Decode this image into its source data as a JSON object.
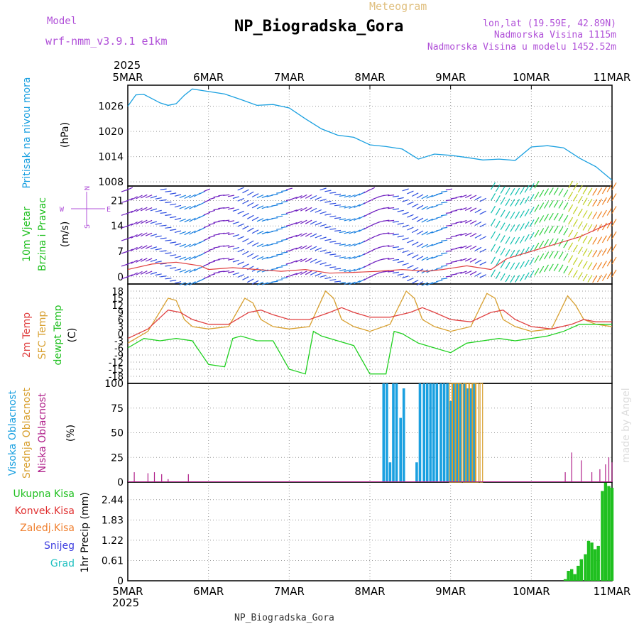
{
  "header": {
    "model_label": "Model",
    "model_name": "wrf-nmm_v3.9.1 e1km",
    "product": "Meteogram",
    "station": "NP_Biogradska_Gora",
    "lonlat": "lon,lat (19.59E, 42.89N)",
    "elevation": "Nadmorska Visina 1115m",
    "model_elevation": "Nadmorska Visina u modelu 1452.52m",
    "year_top": "2025",
    "year_bottom": "2025",
    "credit": "made by Angel",
    "footer_station": "NP_Biogradska_Gora"
  },
  "colors": {
    "title": "#000000",
    "model": "#b050d8",
    "product": "#e0c080",
    "pressure": "#1aa0e0",
    "wind_label": "#20c020",
    "temp2m": "#e04040",
    "sfc": "#d8a030",
    "dewpt": "#20d020",
    "high_cloud": "#1aa0e0",
    "mid_cloud": "#d8a030",
    "low_cloud": "#b0208a",
    "precip_total": "#20c020",
    "precip_conv": "#e03030",
    "precip_frozen": "#f08030",
    "snow": "#4040e0",
    "hail": "#20c0c0",
    "grid": "#999999"
  },
  "chart_data": [
    {
      "type": "line",
      "title": "",
      "ylabel": [
        "Pritisak na nivou mora",
        "(hPa)"
      ],
      "x_labels": [
        "5MAR",
        "6MAR",
        "7MAR",
        "8MAR",
        "9MAR",
        "10MAR",
        "11MAR"
      ],
      "yticks": [
        "1008",
        "1014",
        "1020",
        "1026"
      ],
      "ylim": [
        1007,
        1031
      ],
      "grid": true,
      "series": [
        {
          "name": "",
          "x": [
            0,
            0.1,
            0.2,
            0.3,
            0.4,
            0.5,
            0.6,
            0.7,
            0.8,
            0.9,
            1.0,
            1.2,
            1.4,
            1.6,
            1.8,
            2.0,
            2.2,
            2.4,
            2.6,
            2.8,
            3.0,
            3.2,
            3.4,
            3.6,
            3.8,
            4.0,
            4.2,
            4.4,
            4.6,
            4.8,
            5.0,
            5.2,
            5.4,
            5.6,
            5.8,
            6.0
          ],
          "values": [
            1026,
            1028.7,
            1028.8,
            1027.8,
            1026.8,
            1026.2,
            1026.6,
            1028.6,
            1030.1,
            1029.8,
            1029.5,
            1028.9,
            1027.6,
            1026.2,
            1026.4,
            1025.6,
            1023,
            1020.6,
            1019.1,
            1018.6,
            1016.8,
            1016.4,
            1015.8,
            1013.4,
            1014.6,
            1014.3,
            1013.8,
            1013.2,
            1013.4,
            1013.1,
            1016.3,
            1016.6,
            1016.1,
            1013.6,
            1011.6,
            1008.4
          ]
        }
      ]
    },
    {
      "type": "line",
      "title": "",
      "ylabel": [
        "10m Vjetar",
        "Brzina i Pravac",
        "(m/s)"
      ],
      "yticks": [
        "0",
        "7",
        "14",
        "21"
      ],
      "ylim": [
        -2,
        25
      ],
      "grid": true,
      "barb_legend": {
        "north": "N",
        "south": "S",
        "west": "W",
        "east": "E"
      },
      "series": [
        {
          "name": "",
          "x": [
            0,
            0.3,
            0.6,
            0.9,
            1.0,
            1.3,
            1.6,
            1.9,
            2.2,
            2.5,
            2.8,
            3.1,
            3.4,
            3.7,
            3.9,
            4.2,
            4.5,
            4.7,
            5.0,
            5.3,
            5.6,
            5.8,
            6.0
          ],
          "values": [
            2,
            3.5,
            4,
            3,
            2,
            2.5,
            2,
            1.5,
            2,
            1,
            1.2,
            1.5,
            2,
            1.5,
            2,
            3,
            2,
            5,
            7,
            9,
            11,
            13,
            15
          ]
        }
      ]
    },
    {
      "type": "line",
      "title": "",
      "ylabel": [
        "2m Temp",
        "SFC Temp",
        "dewpt Temp",
        "(C)"
      ],
      "yticks": [
        "-18",
        "-15",
        "-12",
        "-9",
        "-6",
        "-3",
        "0",
        "3",
        "6",
        "9",
        "12",
        "15",
        "18"
      ],
      "ylim": [
        -21,
        21
      ],
      "grid": true,
      "series": [
        {
          "name": "2m Temp",
          "x": [
            0,
            0.25,
            0.5,
            0.65,
            0.8,
            1.0,
            1.25,
            1.5,
            1.65,
            1.8,
            2.0,
            2.25,
            2.5,
            2.65,
            2.8,
            3.0,
            3.25,
            3.5,
            3.65,
            3.8,
            4.0,
            4.25,
            4.5,
            4.65,
            4.8,
            5.0,
            5.25,
            5.5,
            5.65,
            5.8,
            6.0
          ],
          "values": [
            -2,
            2,
            10,
            9,
            6,
            4,
            4,
            9,
            10,
            8,
            6,
            6,
            9,
            11,
            9,
            7,
            7,
            9,
            11,
            9,
            6,
            5,
            9,
            10,
            6,
            3,
            2,
            4,
            6,
            5,
            5
          ]
        },
        {
          "name": "SFC Temp",
          "x": [
            0,
            0.25,
            0.5,
            0.6,
            0.7,
            0.8,
            1.0,
            1.25,
            1.45,
            1.55,
            1.65,
            1.8,
            2.0,
            2.25,
            2.45,
            2.55,
            2.65,
            2.8,
            3.0,
            3.25,
            3.45,
            3.55,
            3.65,
            3.8,
            4.0,
            4.25,
            4.45,
            4.55,
            4.65,
            4.8,
            5.0,
            5.25,
            5.45,
            5.55,
            5.65,
            5.8,
            6.0
          ],
          "values": [
            -4,
            1,
            15,
            14,
            6,
            3,
            2,
            3,
            15,
            13,
            6,
            3,
            2,
            3,
            18,
            15,
            6,
            3,
            1,
            4,
            18,
            15,
            6,
            3,
            1,
            3,
            17,
            15,
            6,
            3,
            1,
            2,
            16,
            12,
            6,
            4,
            3
          ]
        },
        {
          "name": "dewpt Temp",
          "x": [
            0,
            0.2,
            0.4,
            0.6,
            0.8,
            1.0,
            1.2,
            1.3,
            1.4,
            1.6,
            1.8,
            2.0,
            2.2,
            2.3,
            2.4,
            2.6,
            2.8,
            3.0,
            3.2,
            3.3,
            3.4,
            3.6,
            3.8,
            4.0,
            4.2,
            4.4,
            4.6,
            4.8,
            5.0,
            5.2,
            5.4,
            5.6,
            5.8,
            6.0
          ],
          "values": [
            -6,
            -2,
            -3,
            -2,
            -3,
            -13,
            -14,
            -2,
            -1,
            -3,
            -3,
            -15,
            -17,
            1,
            -1,
            -3,
            -5,
            -17,
            -17,
            1,
            0,
            -4,
            -6,
            -8,
            -4,
            -3,
            -2,
            -3,
            -2,
            -1,
            1,
            4,
            4,
            4
          ]
        }
      ]
    },
    {
      "type": "bar",
      "title": "",
      "ylabel": [
        "Visoka Oblacnost",
        "Srednja Oblacnost",
        "Niska Oblacnost",
        "(%)"
      ],
      "yticks": [
        "0",
        "25",
        "50",
        "75",
        "100"
      ],
      "ylim": [
        0,
        100
      ],
      "grid": true,
      "series": [
        {
          "name": "Visoka Oblacnost",
          "x": [
            3.17,
            3.21,
            3.25,
            3.29,
            3.33,
            3.38,
            3.42,
            3.58,
            3.62,
            3.67,
            3.71,
            3.75,
            3.79,
            3.83,
            3.88,
            3.92,
            3.96,
            4.0,
            4.04,
            4.08,
            4.12,
            4.17,
            4.21,
            4.25,
            4.29
          ],
          "values": [
            100,
            100,
            20,
            100,
            100,
            65,
            95,
            20,
            100,
            100,
            100,
            100,
            100,
            100,
            100,
            100,
            100,
            82,
            100,
            100,
            100,
            100,
            95,
            95,
            100
          ]
        },
        {
          "name": "Srednja Oblacnost",
          "x": [
            4.0,
            4.04,
            4.08,
            4.12,
            4.17,
            4.21,
            4.25,
            4.29,
            4.33,
            4.38
          ],
          "values": [
            100,
            100,
            100,
            100,
            100,
            100,
            100,
            100,
            100,
            100
          ]
        },
        {
          "name": "Niska Oblacnost",
          "x": [
            0.08,
            0.25,
            0.33,
            0.42,
            0.5,
            0.75,
            5.75,
            5.12,
            5.42,
            5.5,
            5.62,
            5.85,
            5.92,
            5.96,
            6.0
          ],
          "values": [
            10,
            9,
            10,
            8,
            3,
            8,
            10,
            0,
            10,
            30,
            22,
            13,
            18,
            25,
            20
          ]
        }
      ]
    },
    {
      "type": "bar",
      "title": "",
      "ylabel": [
        "Ukupna Kisa",
        "Konvek.Kisa",
        "Zaledj.Kisa",
        "Snijeg",
        "Grad",
        "1hr Precip (mm)"
      ],
      "yticks": [
        "0",
        "0.61",
        "1.22",
        "1.83",
        "2.44"
      ],
      "x_labels": [
        "5MAR",
        "6MAR",
        "7MAR",
        "8MAR",
        "9MAR",
        "10MAR",
        "11MAR"
      ],
      "ylim": [
        0,
        2.97
      ],
      "grid": true,
      "series": [
        {
          "name": "Ukupna Kisa",
          "x": [
            5.42,
            5.46,
            5.5,
            5.54,
            5.58,
            5.62,
            5.67,
            5.71,
            5.75,
            5.79,
            5.83,
            5.88,
            5.92,
            5.96,
            6.0
          ],
          "values": [
            0.05,
            0.3,
            0.35,
            0.2,
            0.45,
            0.65,
            0.8,
            1.2,
            1.15,
            0.95,
            1.05,
            2.7,
            2.95,
            2.85,
            2.8
          ]
        }
      ]
    }
  ]
}
